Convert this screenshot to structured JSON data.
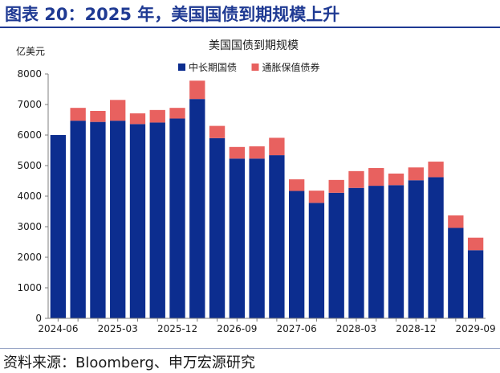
{
  "figure": {
    "title": "图表 20：2025 年，美国国债到期规模上升",
    "source": "资料来源：Bloomberg、申万宏源研究",
    "colors": {
      "title": "#1f3a93",
      "bar_main": "#0c2d8f",
      "bar_tips": "#e8615f"
    }
  },
  "chart_data": {
    "type": "bar",
    "stacked": true,
    "title": "美国国债到期规模",
    "ylabel": "亿美元",
    "xlabel": "",
    "ylim": [
      0,
      8000
    ],
    "yticks": [
      0,
      1000,
      2000,
      3000,
      4000,
      5000,
      6000,
      7000,
      8000
    ],
    "grid": false,
    "legend": "top-center",
    "categories": [
      "2024-06",
      "2024-09",
      "2024-12",
      "2025-03",
      "2025-06",
      "2025-09",
      "2025-12",
      "2026-03",
      "2026-06",
      "2026-09",
      "2026-12",
      "2027-03",
      "2027-06",
      "2027-09",
      "2027-12",
      "2028-03",
      "2028-06",
      "2028-09",
      "2028-12",
      "2029-03",
      "2029-06",
      "2029-09"
    ],
    "xtick_labels": [
      "2024-06",
      "2025-03",
      "2025-12",
      "2026-09",
      "2027-06",
      "2028-03",
      "2028-12",
      "2029-09"
    ],
    "series": [
      {
        "name": "中长期国债",
        "color": "#0c2d8f",
        "values": [
          6000,
          6470,
          6430,
          6470,
          6360,
          6410,
          6540,
          7180,
          5900,
          5230,
          5230,
          5340,
          4170,
          3780,
          4110,
          4270,
          4340,
          4360,
          4520,
          4620,
          2960,
          2230
        ]
      },
      {
        "name": "通胀保值债券",
        "color": "#e8615f",
        "values": [
          0,
          420,
          360,
          680,
          350,
          410,
          350,
          600,
          400,
          380,
          400,
          570,
          380,
          400,
          420,
          550,
          580,
          380,
          420,
          510,
          410,
          410
        ]
      }
    ]
  }
}
